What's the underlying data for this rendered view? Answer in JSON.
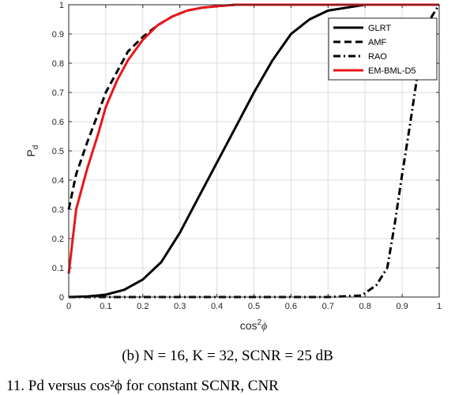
{
  "chart_data": {
    "type": "line",
    "xlabel": "cos²ϕ",
    "ylabel": "P_d",
    "xlim": [
      0,
      1
    ],
    "ylim": [
      0,
      1
    ],
    "xticks": [
      "0",
      "0.1",
      "0.2",
      "0.3",
      "0.4",
      "0.5",
      "0.6",
      "0.7",
      "0.8",
      "0.9",
      "1"
    ],
    "yticks": [
      "0",
      "0.1",
      "0.2",
      "0.3",
      "0.4",
      "0.5",
      "0.6",
      "0.7",
      "0.8",
      "0.9",
      "1"
    ],
    "grid": true,
    "legend_position": "top-right",
    "series": [
      {
        "name": "GLRT",
        "color": "#000000",
        "dash": "solid",
        "x": [
          0,
          0.05,
          0.1,
          0.15,
          0.2,
          0.25,
          0.3,
          0.35,
          0.4,
          0.45,
          0.5,
          0.55,
          0.6,
          0.65,
          0.7,
          0.75,
          0.8,
          0.9,
          1.0
        ],
        "y": [
          0,
          0.002,
          0.008,
          0.025,
          0.06,
          0.12,
          0.22,
          0.34,
          0.46,
          0.58,
          0.7,
          0.81,
          0.9,
          0.95,
          0.98,
          0.99,
          1.0,
          1.0,
          1.0
        ]
      },
      {
        "name": "AMF",
        "color": "#000000",
        "dash": "dashed",
        "x": [
          0,
          0.02,
          0.05,
          0.08,
          0.1,
          0.13,
          0.16,
          0.2,
          0.24,
          0.28,
          0.32,
          0.36,
          0.4,
          0.45,
          0.5,
          0.6,
          0.7,
          0.8,
          0.9,
          1.0
        ],
        "y": [
          0.3,
          0.42,
          0.53,
          0.63,
          0.7,
          0.77,
          0.84,
          0.89,
          0.93,
          0.96,
          0.98,
          0.99,
          0.995,
          1.0,
          1.0,
          1.0,
          1.0,
          1.0,
          1.0,
          1.0
        ]
      },
      {
        "name": "RAO",
        "color": "#000000",
        "dash": "dashdot",
        "x": [
          0,
          0.1,
          0.2,
          0.3,
          0.4,
          0.5,
          0.6,
          0.7,
          0.79,
          0.83,
          0.86,
          0.88,
          0.9,
          0.92,
          0.94,
          0.96,
          0.98,
          1.0
        ],
        "y": [
          0,
          0,
          0,
          0,
          0,
          0,
          0,
          0,
          0.005,
          0.04,
          0.1,
          0.25,
          0.42,
          0.58,
          0.75,
          0.88,
          0.96,
          1.0
        ]
      },
      {
        "name": "EM-BML-D5",
        "color": "#e8161b",
        "dash": "solid",
        "x": [
          0,
          0.02,
          0.05,
          0.08,
          0.1,
          0.13,
          0.16,
          0.2,
          0.24,
          0.28,
          0.32,
          0.36,
          0.4,
          0.45,
          0.5,
          0.6,
          0.7,
          0.8,
          0.9,
          1.0
        ],
        "y": [
          0.08,
          0.3,
          0.44,
          0.56,
          0.65,
          0.74,
          0.81,
          0.88,
          0.93,
          0.96,
          0.98,
          0.99,
          0.995,
          1.0,
          1.0,
          1.0,
          1.0,
          1.0,
          1.0,
          1.0
        ]
      }
    ]
  },
  "captions": {
    "subfigure": "(b) N = 16, K = 32, SCNR = 25 dB",
    "figure": "11. Pd versus cos²ϕ for constant SCNR, CNR"
  }
}
